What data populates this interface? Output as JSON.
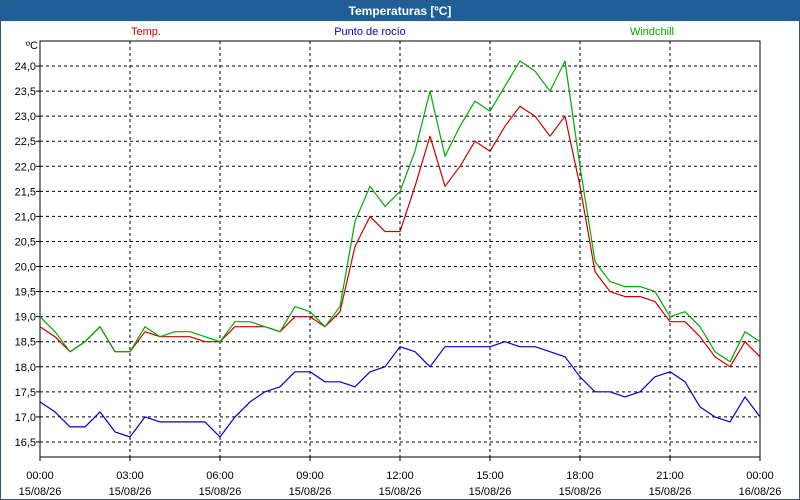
{
  "window": {
    "title": "Temperaturas [ºC]"
  },
  "chart_data": {
    "type": "line",
    "title": "Temperaturas [ºC]",
    "ylabel": "ºC",
    "ylim": [
      16.2,
      24.5
    ],
    "yticks": [
      16.5,
      17.0,
      17.5,
      18.0,
      18.5,
      19.0,
      19.5,
      20.0,
      20.5,
      21.0,
      21.5,
      22.0,
      22.5,
      23.0,
      23.5,
      24.0
    ],
    "ytick_labels": [
      "16,5",
      "17,0",
      "17,5",
      "18,0",
      "18,5",
      "19,0",
      "19,5",
      "20,0",
      "20,5",
      "21,0",
      "21,5",
      "22,0",
      "22,5",
      "23,0",
      "23,5",
      "24,0"
    ],
    "xlim": [
      0,
      24
    ],
    "xticks": [
      0,
      3,
      6,
      9,
      12,
      15,
      18,
      21,
      24
    ],
    "xtick_times": [
      "00:00",
      "03:00",
      "06:00",
      "09:00",
      "12:00",
      "15:00",
      "18:00",
      "21:00",
      "00:00"
    ],
    "xtick_dates": [
      "15/08/26",
      "15/08/26",
      "15/08/26",
      "15/08/26",
      "15/08/26",
      "15/08/26",
      "15/08/26",
      "15/08/26",
      "16/08/26"
    ],
    "grid": true,
    "legend_placement": "top",
    "x": [
      0,
      0.5,
      1,
      1.5,
      2,
      2.5,
      3,
      3.5,
      4,
      4.5,
      5,
      5.5,
      6,
      6.5,
      7,
      7.5,
      8,
      8.5,
      9,
      9.5,
      10,
      10.5,
      11,
      11.5,
      12,
      12.5,
      13,
      13.5,
      14,
      14.5,
      15,
      15.5,
      16,
      16.5,
      17,
      17.5,
      18,
      18.5,
      19,
      19.5,
      20,
      20.5,
      21,
      21.5,
      22,
      22.5,
      23,
      23.5,
      24
    ],
    "series": [
      {
        "name": "Temp.",
        "color": "#cc0000",
        "values": [
          18.8,
          18.6,
          18.3,
          18.5,
          18.8,
          18.3,
          18.3,
          18.7,
          18.6,
          18.6,
          18.6,
          18.5,
          18.5,
          18.8,
          18.8,
          18.8,
          18.7,
          19.0,
          19.0,
          18.8,
          19.1,
          20.4,
          21.0,
          20.7,
          20.7,
          21.6,
          22.6,
          21.6,
          22.0,
          22.5,
          22.3,
          22.8,
          23.2,
          23.0,
          22.6,
          23.0,
          21.6,
          19.9,
          19.5,
          19.4,
          19.4,
          19.3,
          18.9,
          18.9,
          18.6,
          18.2,
          18.0,
          18.5,
          18.2
        ]
      },
      {
        "name": "Punto de rocío",
        "color": "#0000cc",
        "values": [
          17.3,
          17.1,
          16.8,
          16.8,
          17.1,
          16.7,
          16.6,
          17.0,
          16.9,
          16.9,
          16.9,
          16.9,
          16.6,
          17.0,
          17.3,
          17.5,
          17.6,
          17.9,
          17.9,
          17.7,
          17.7,
          17.6,
          17.9,
          18.0,
          18.4,
          18.3,
          18.0,
          18.4,
          18.4,
          18.4,
          18.4,
          18.5,
          18.4,
          18.4,
          18.3,
          18.2,
          17.8,
          17.5,
          17.5,
          17.4,
          17.5,
          17.8,
          17.9,
          17.7,
          17.2,
          17.0,
          16.9,
          17.4,
          17.0
        ]
      },
      {
        "name": "Windchill",
        "color": "#00aa00",
        "values": [
          19.0,
          18.7,
          18.3,
          18.5,
          18.8,
          18.3,
          18.3,
          18.8,
          18.6,
          18.7,
          18.7,
          18.6,
          18.5,
          18.9,
          18.9,
          18.8,
          18.7,
          19.2,
          19.1,
          18.8,
          19.2,
          20.9,
          21.6,
          21.2,
          21.5,
          22.3,
          23.5,
          22.2,
          22.8,
          23.3,
          23.1,
          23.6,
          24.1,
          23.9,
          23.5,
          24.1,
          22.0,
          20.1,
          19.7,
          19.6,
          19.6,
          19.5,
          19.0,
          19.1,
          18.8,
          18.3,
          18.1,
          18.7,
          18.5
        ]
      }
    ]
  }
}
